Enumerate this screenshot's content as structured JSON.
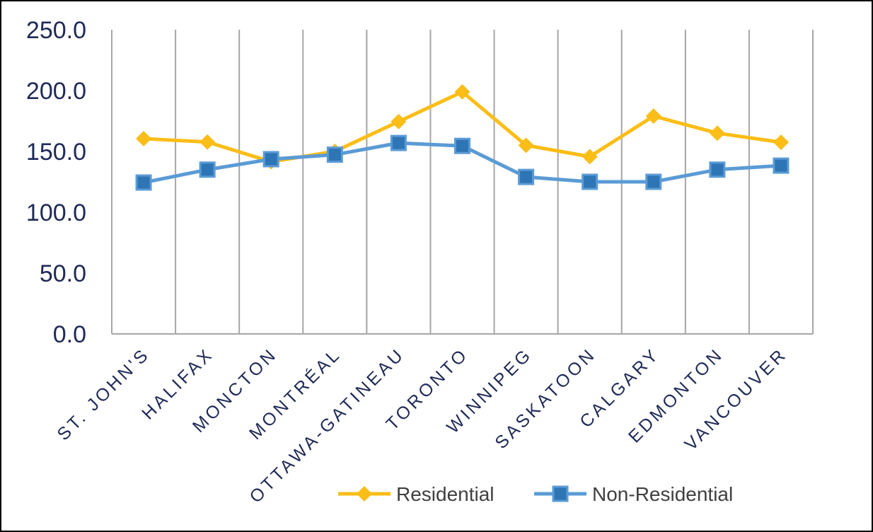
{
  "chart_data": {
    "type": "line",
    "title": "",
    "xlabel": "",
    "ylabel": "",
    "categories": [
      "ST. JOHN'S",
      "HALIFAX",
      "MONCTON",
      "MONTRÉAL",
      "OTTAWA-GATINEAU",
      "TORONTO",
      "WINNIPEG",
      "SASKATOON",
      "CALGARY",
      "EDMONTON",
      "VANCOUVER"
    ],
    "ylim": [
      0,
      250
    ],
    "yticks": [
      "0.0",
      "50.0",
      "100.0",
      "150.0",
      "200.0",
      "250.0"
    ],
    "grid": "vertical",
    "legend_position": "bottom",
    "series": [
      {
        "name": "Residential",
        "color": "#fbbd17",
        "marker": "diamond",
        "values": [
          160.5,
          157.7,
          141.5,
          150.0,
          174.5,
          198.9,
          155.0,
          145.7,
          179.0,
          165.0,
          157.5
        ]
      },
      {
        "name": "Non-Residential",
        "color": "#5b9bd5",
        "marker_fill": "#2e75b6",
        "marker": "square",
        "values": [
          124.4,
          135.0,
          143.6,
          147.3,
          156.9,
          154.5,
          129.0,
          125.0,
          125.0,
          135.0,
          138.3
        ]
      }
    ]
  }
}
